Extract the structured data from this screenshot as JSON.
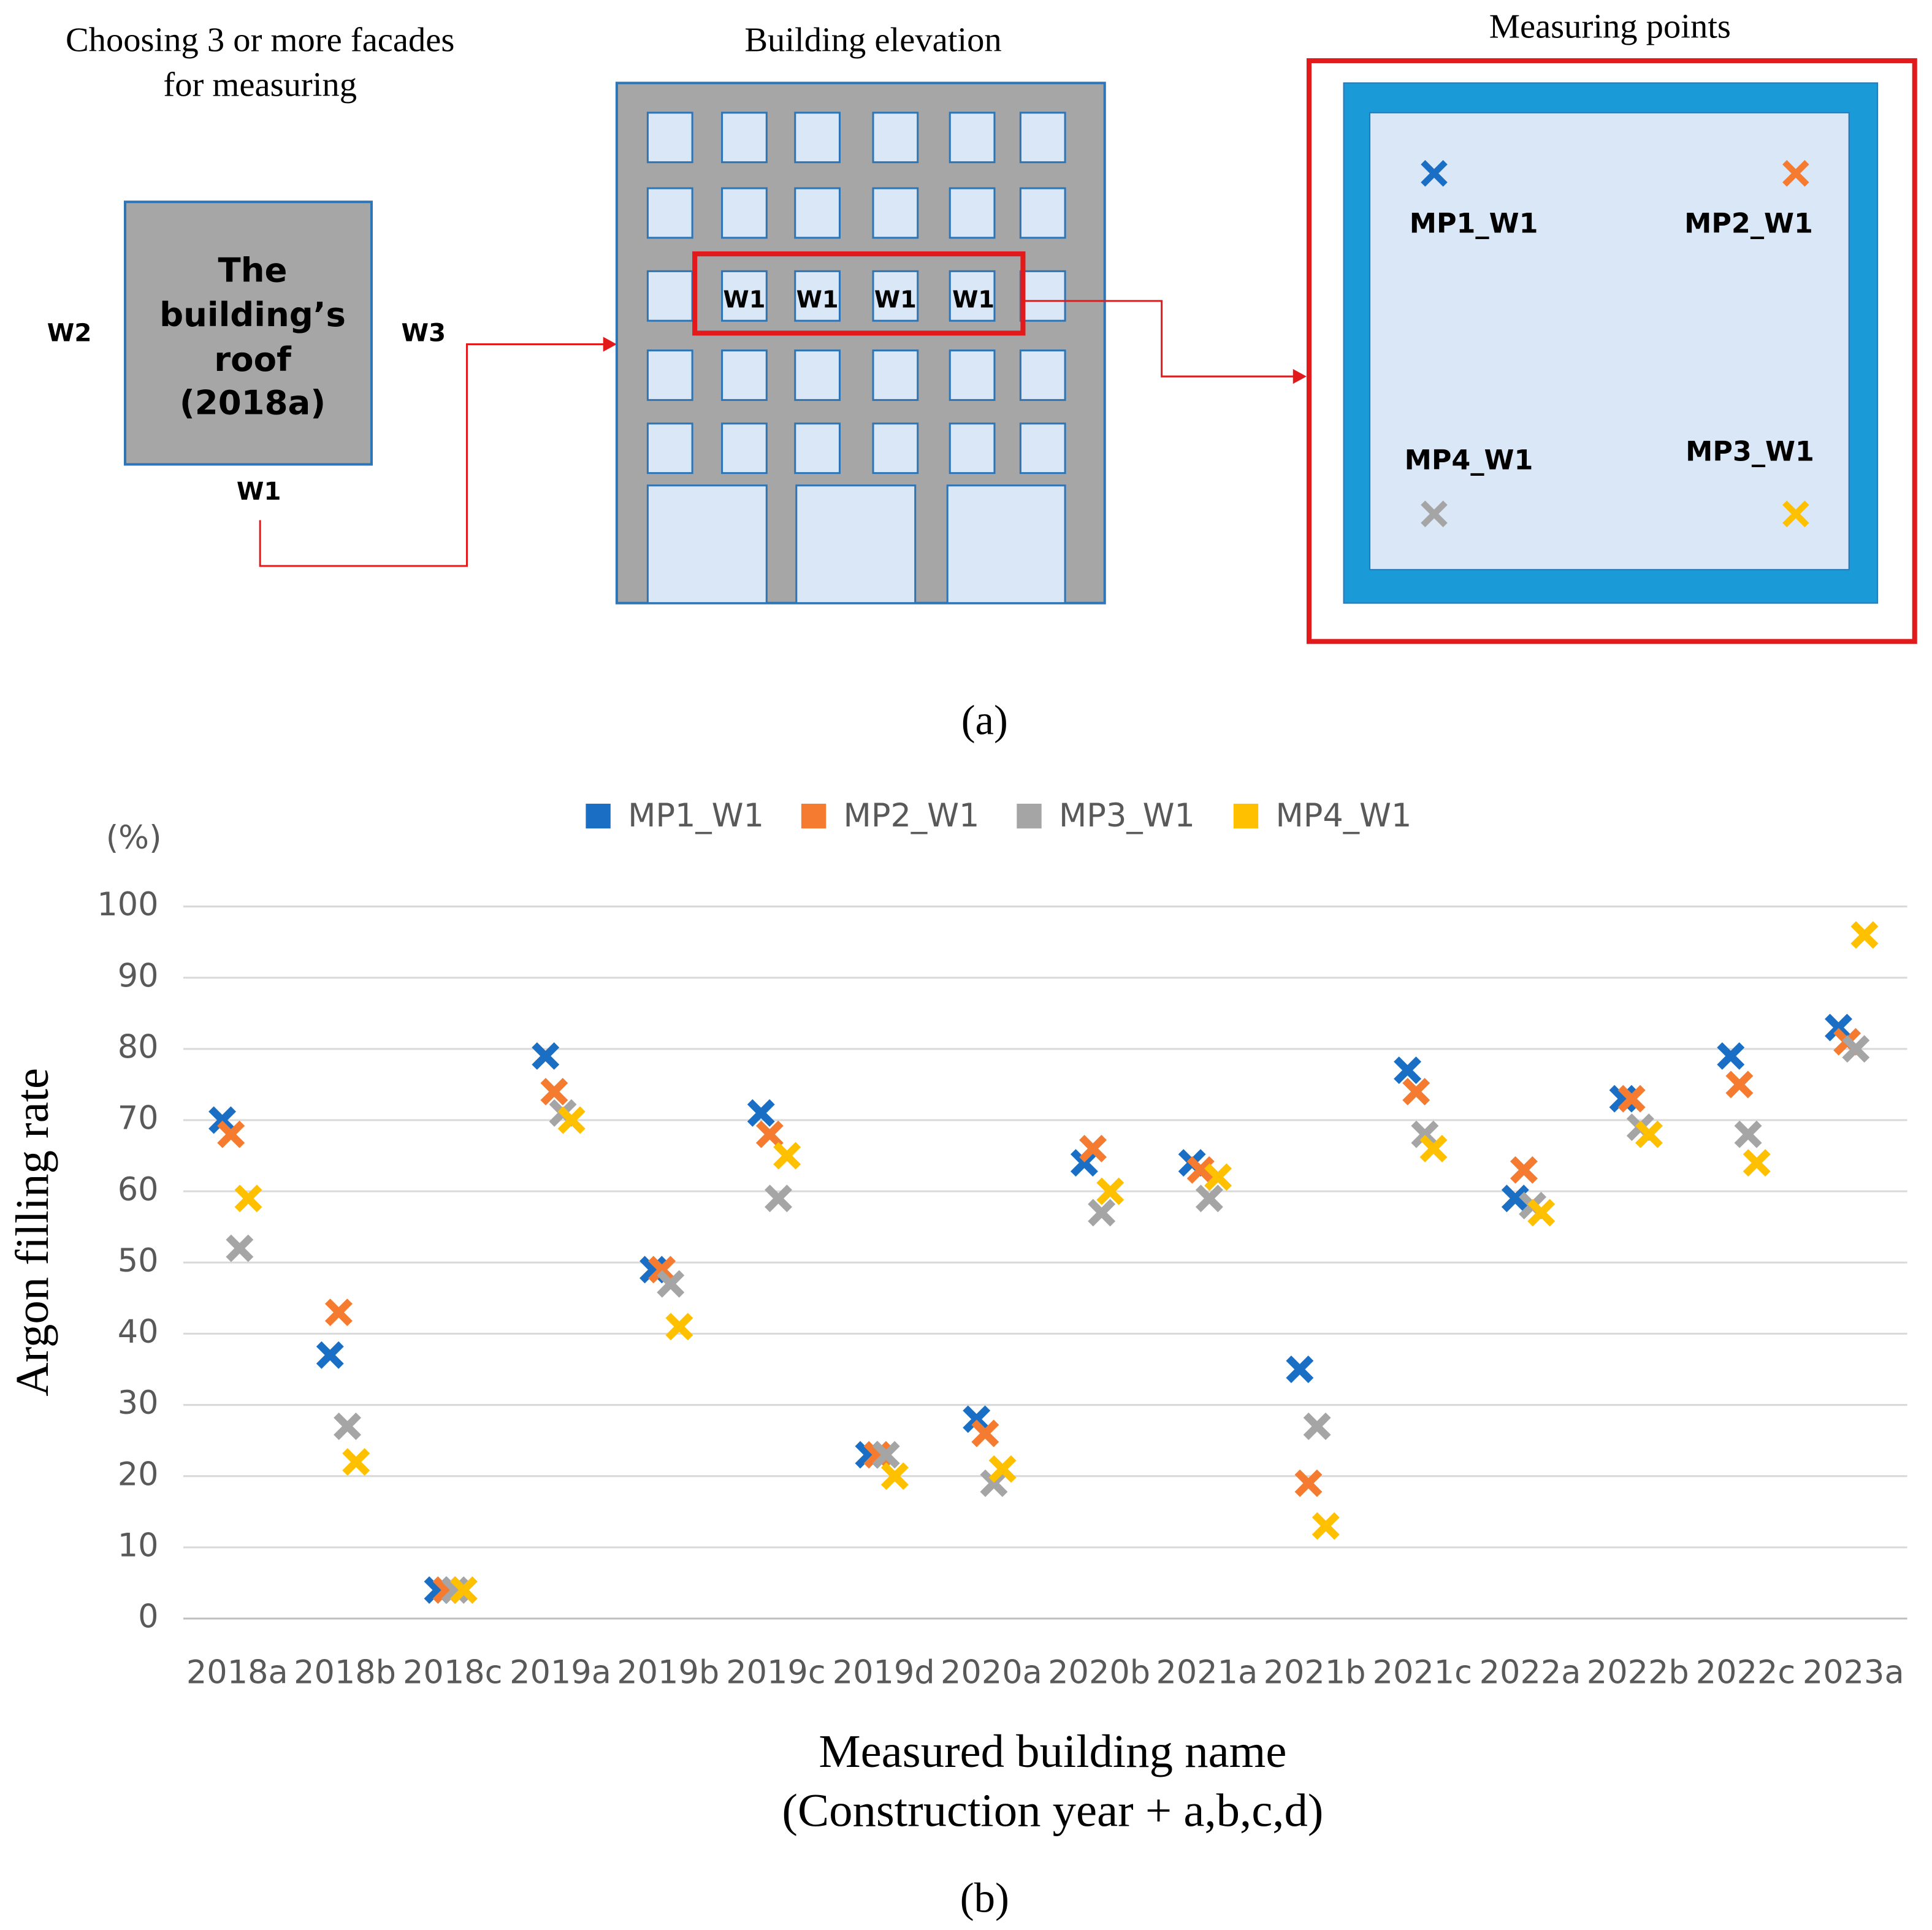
{
  "diagram": {
    "facade_title": [
      "Choosing 3 or more facades",
      "for measuring"
    ],
    "roof_label": [
      "The",
      "building’s",
      "roof",
      "(2018a)"
    ],
    "facades": [
      "W1",
      "W2",
      "W3"
    ],
    "elevation_title": "Building elevation",
    "window_labels": [
      "W1",
      "W1",
      "W1",
      "W1"
    ],
    "points_title": "Measuring points",
    "point_labels": [
      "MP1_W1",
      "MP2_W1",
      "MP4_W1",
      "MP3_W1"
    ]
  },
  "figure_captions": [
    "(a)",
    "(b)"
  ],
  "chart_data": {
    "type": "scatter",
    "y_unit": "(%)",
    "y_label": "Argon filling rate",
    "x_label": [
      "Measured building name",
      "(Construction year + a,b,c,d)"
    ],
    "categories": [
      "2018a",
      "2018b",
      "2018c",
      "2019a",
      "2019b",
      "2019c",
      "2019d",
      "2020a",
      "2020b",
      "2021a",
      "2021b",
      "2021c",
      "2022a",
      "2022b",
      "2022c",
      "2023a"
    ],
    "series": [
      {
        "name": "MP1_W1",
        "color": "#1a6fc4",
        "values": [
          70,
          37,
          4,
          79,
          49,
          71,
          23,
          28,
          64,
          64,
          35,
          77,
          59,
          73,
          79,
          83
        ]
      },
      {
        "name": "MP2_W1",
        "color": "#f47b30",
        "values": [
          68,
          43,
          4,
          74,
          49,
          68,
          23,
          26,
          66,
          63,
          19,
          74,
          63,
          73,
          75,
          81
        ]
      },
      {
        "name": "MP3_W1",
        "color": "#a5a5a5",
        "values": [
          52,
          27,
          4,
          71,
          47,
          59,
          23,
          19,
          57,
          59,
          27,
          68,
          58,
          69,
          68,
          80
        ]
      },
      {
        "name": "MP4_W1",
        "color": "#ffc000",
        "values": [
          59,
          22,
          4,
          70,
          41,
          65,
          20,
          21,
          60,
          62,
          13,
          66,
          57,
          68,
          64,
          96
        ]
      }
    ],
    "ylim": [
      0,
      100
    ],
    "yticks": [
      0,
      10,
      20,
      30,
      40,
      50,
      60,
      70,
      80,
      90,
      100
    ],
    "grid": true,
    "legend": "top"
  }
}
